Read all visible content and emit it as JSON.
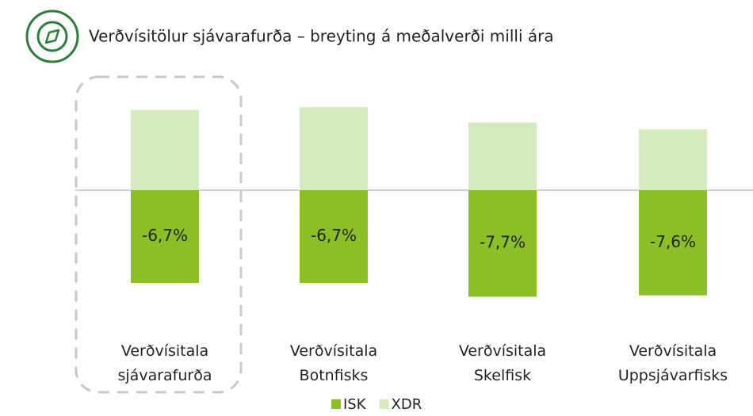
{
  "chart_data": {
    "type": "bar",
    "title": "Verðvísitölur sjávarafurða – breyting á meðalverði milli ára",
    "categories": [
      "Verðvísitala sjávarafurða",
      "Verðvísitala Botnfisks",
      "Verðvísitala Skelfisk",
      "Verðvísitala Uppsjávarfisks"
    ],
    "series": [
      {
        "name": "ISK",
        "color": "#8cbf26",
        "values": [
          -6.7,
          -6.7,
          -7.7,
          -7.6
        ],
        "value_labels": [
          "-6,7%",
          "-6,7%",
          "-7,7%",
          "-7,6%"
        ]
      },
      {
        "name": "XDR",
        "color": "#d3ebbd",
        "values": [
          5.8,
          6.0,
          4.9,
          4.4
        ]
      }
    ],
    "ylim": [
      -10,
      8
    ]
  }
}
